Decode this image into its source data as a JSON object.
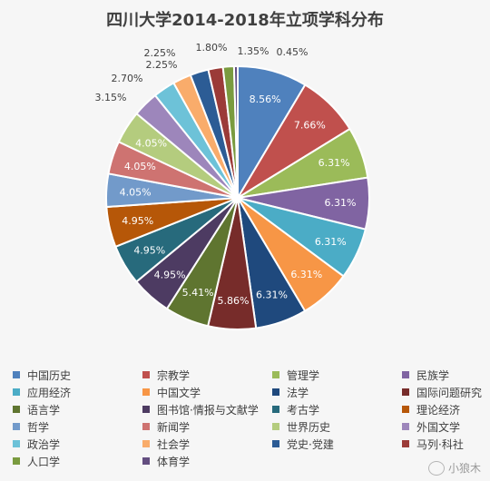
{
  "chart_data": {
    "type": "pie",
    "title": "四川大学2014-2018年立项学科分布",
    "start_angle_deg": 0,
    "direction": "clockwise",
    "legend_placement": "bottom",
    "slices": [
      {
        "label": "中国历史",
        "value": 8.56,
        "display": "8.56%",
        "color": "#4f81bd",
        "label_color": "#ffffff",
        "label_pos": "inside"
      },
      {
        "label": "宗教学",
        "value": 7.66,
        "display": "7.66%",
        "color": "#c0504d",
        "label_color": "#ffffff",
        "label_pos": "inside"
      },
      {
        "label": "管理学",
        "value": 6.31,
        "display": "6.31%",
        "color": "#9bbb59",
        "label_color": "#ffffff",
        "label_pos": "inside"
      },
      {
        "label": "民族学",
        "value": 6.31,
        "display": "6.31%",
        "color": "#8064a2",
        "label_color": "#ffffff",
        "label_pos": "inside"
      },
      {
        "label": "应用经济",
        "value": 6.31,
        "display": "6.31%",
        "color": "#4bacc6",
        "label_color": "#ffffff",
        "label_pos": "inside"
      },
      {
        "label": "中国文学",
        "value": 6.31,
        "display": "6.31%",
        "color": "#f79646",
        "label_color": "#ffffff",
        "label_pos": "inside"
      },
      {
        "label": "法学",
        "value": 6.31,
        "display": "6.31%",
        "color": "#1f497d",
        "label_color": "#ffffff",
        "label_pos": "inside"
      },
      {
        "label": "国际问题研究",
        "value": 5.86,
        "display": "5.86%",
        "color": "#772c2a",
        "label_color": "#ffffff",
        "label_pos": "inside"
      },
      {
        "label": "语言学",
        "value": 5.41,
        "display": "5.41%",
        "color": "#5f7530",
        "label_color": "#ffffff",
        "label_pos": "inside"
      },
      {
        "label": "图书馆·情报与文献学",
        "value": 4.95,
        "display": "4.95%",
        "color": "#4d3b62",
        "label_color": "#ffffff",
        "label_pos": "inside"
      },
      {
        "label": "考古学",
        "value": 4.95,
        "display": "4.95%",
        "color": "#276a7c",
        "label_color": "#ffffff",
        "label_pos": "inside"
      },
      {
        "label": "理论经济",
        "value": 4.95,
        "display": "4.95%",
        "color": "#b65708",
        "label_color": "#ffffff",
        "label_pos": "inside"
      },
      {
        "label": "哲学",
        "value": 4.05,
        "display": "4.05%",
        "color": "#729aca",
        "label_color": "#ffffff",
        "label_pos": "inside"
      },
      {
        "label": "新闻学",
        "value": 4.05,
        "display": "4.05%",
        "color": "#ce7371",
        "label_color": "#ffffff",
        "label_pos": "inside"
      },
      {
        "label": "世界历史",
        "value": 4.05,
        "display": "4.05%",
        "color": "#b4cc7e",
        "label_color": "#ffffff",
        "label_pos": "inside"
      },
      {
        "label": "外国文学",
        "value": 3.15,
        "display": "3.15%",
        "color": "#9d86bb",
        "label_color": "#404040",
        "label_pos": "outside"
      },
      {
        "label": "政治学",
        "value": 2.7,
        "display": "2.70%",
        "color": "#6dc2d8",
        "label_color": "#404040",
        "label_pos": "outside"
      },
      {
        "label": "社会学",
        "value": 2.25,
        "display": "2.25%",
        "color": "#f9ac6b",
        "label_color": "#404040",
        "label_pos": "outside"
      },
      {
        "label": "党史·党建",
        "value": 2.25,
        "display": "2.25%",
        "color": "#2c5c95",
        "label_color": "#404040",
        "label_pos": "outside"
      },
      {
        "label": "马列·科社",
        "value": 1.8,
        "display": "1.80%",
        "color": "#9b3b38",
        "label_color": "#404040",
        "label_pos": "outside"
      },
      {
        "label": "人口学",
        "value": 1.35,
        "display": "1.35%",
        "color": "#7a9b3f",
        "label_color": "#404040",
        "label_pos": "outside"
      },
      {
        "label": "体育学",
        "value": 0.45,
        "display": "0.45%",
        "color": "#634e80",
        "label_color": "#404040",
        "label_pos": "outside"
      }
    ]
  },
  "watermark": {
    "text": "小狼木",
    "icon": "wechat-icon"
  }
}
